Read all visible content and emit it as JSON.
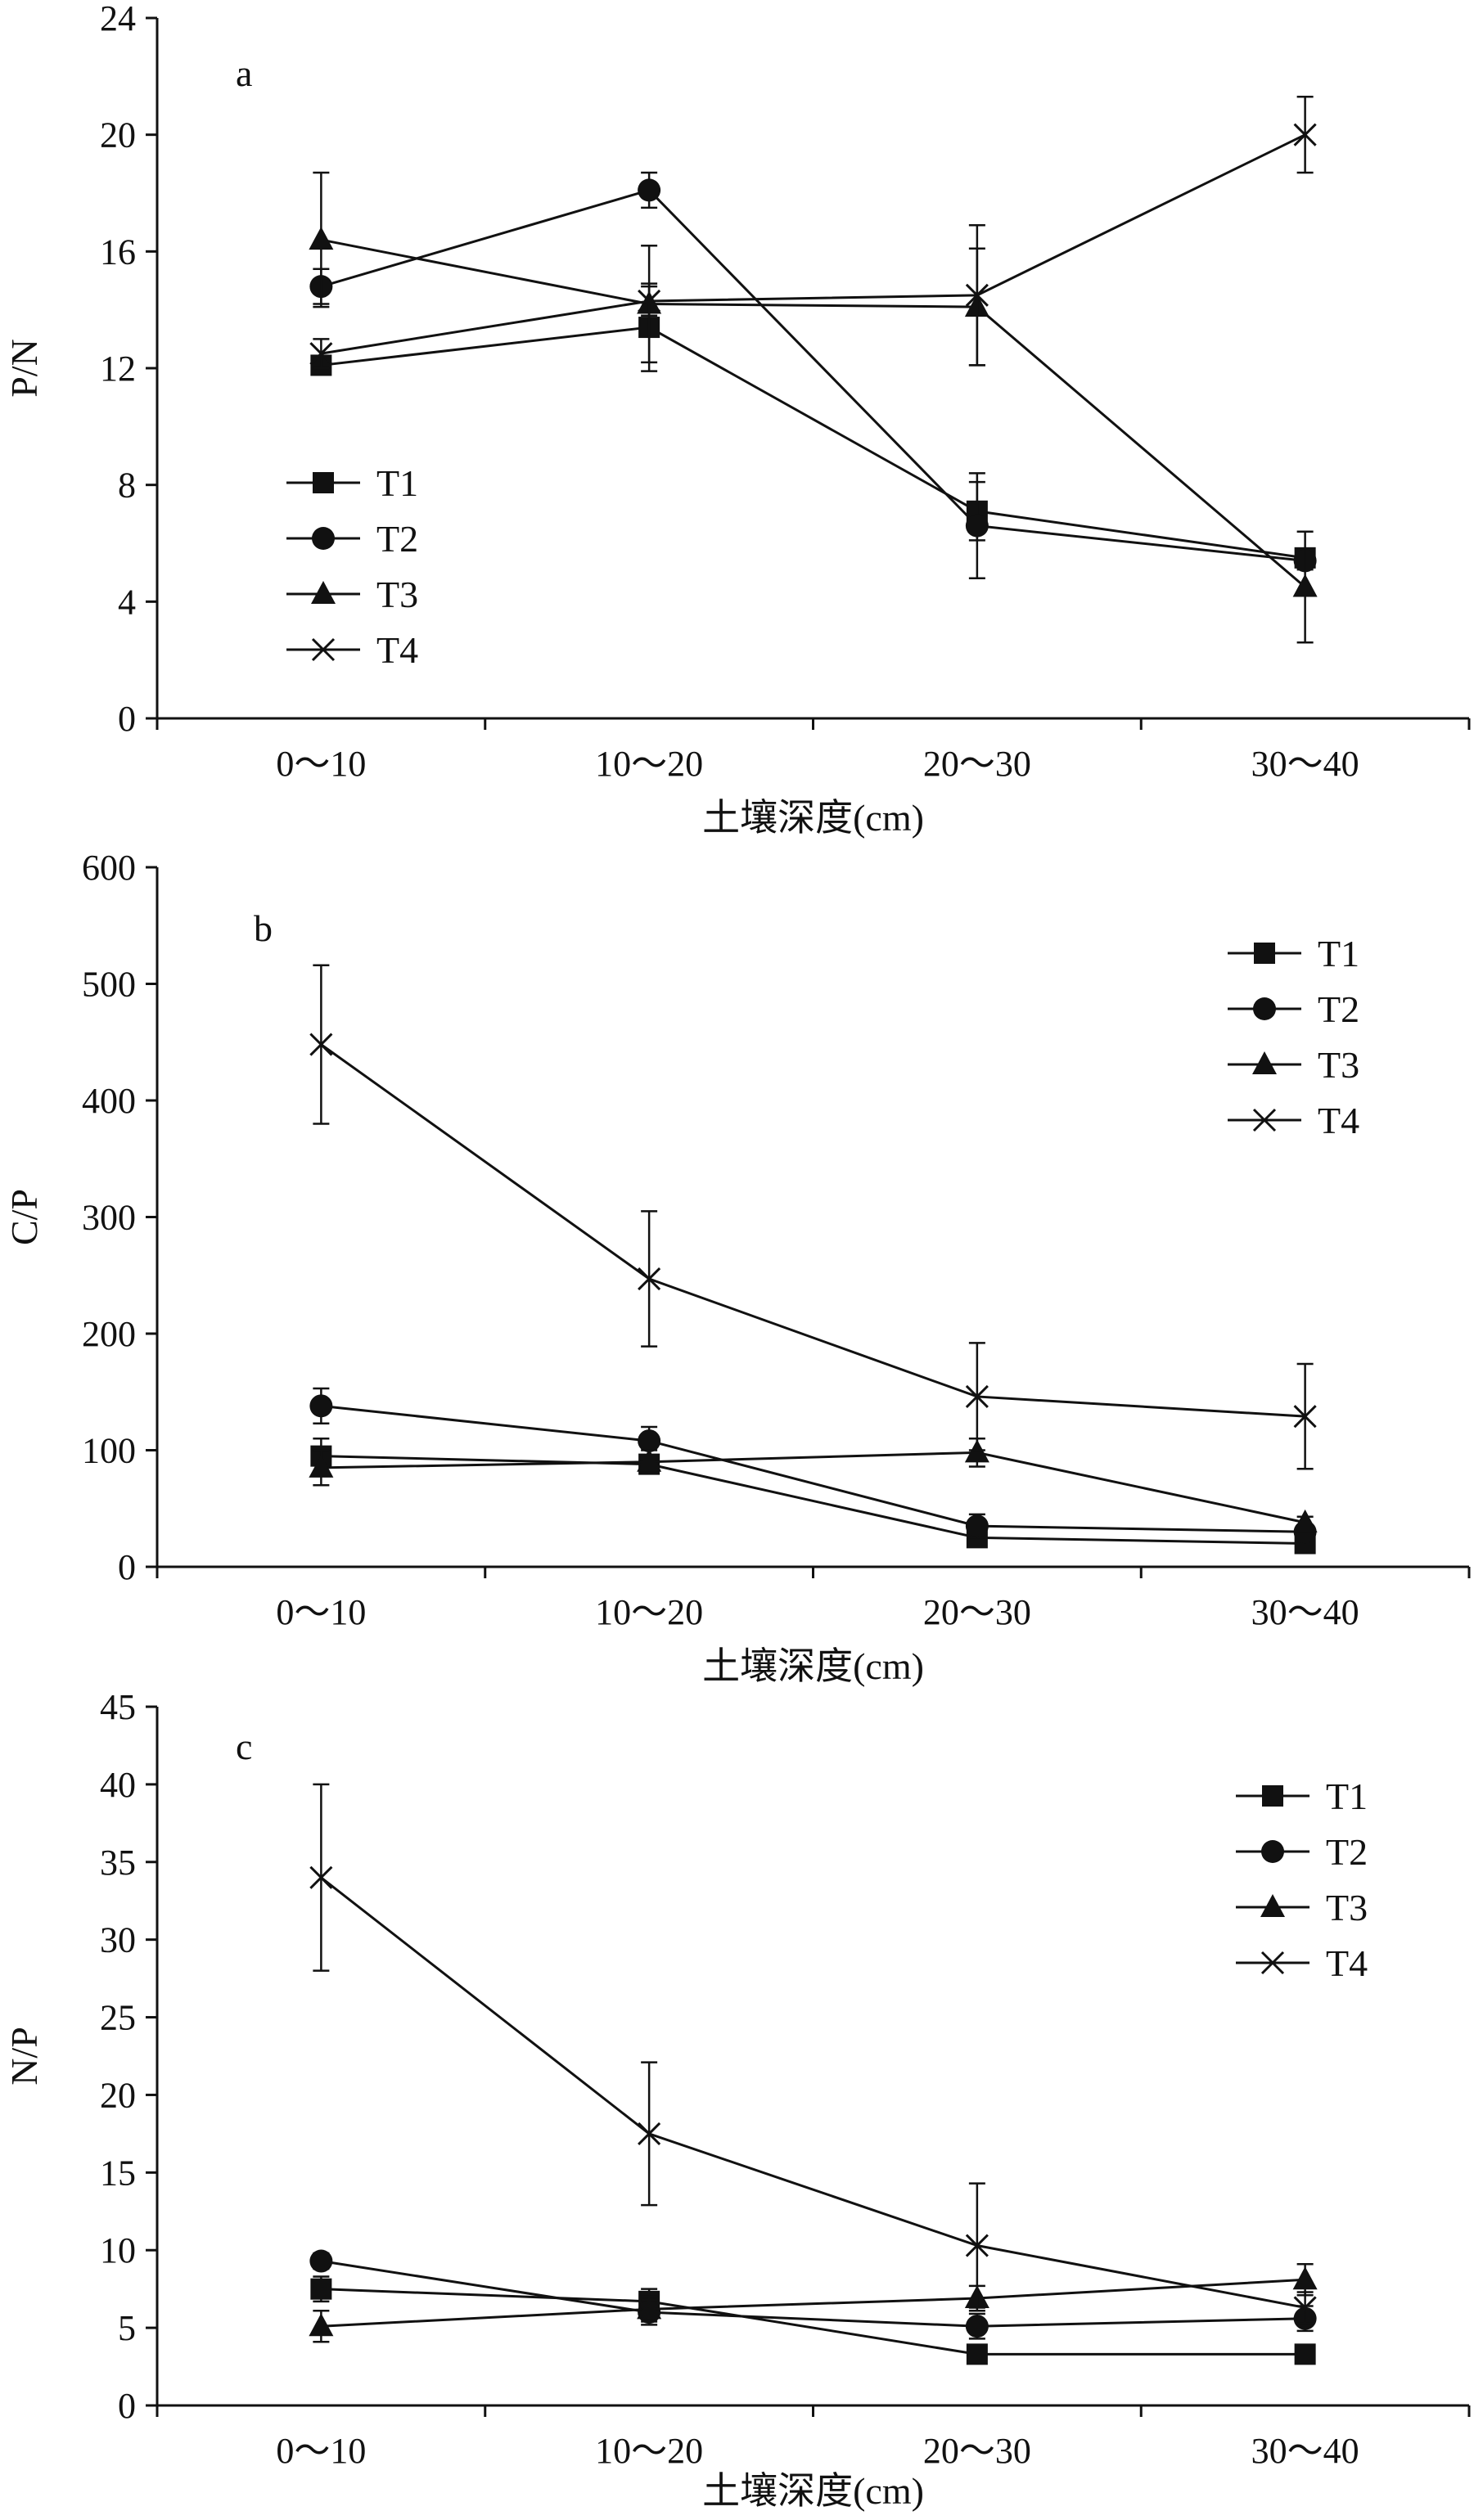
{
  "chart_data": [
    {
      "panel": "a",
      "type": "line",
      "ylabel": "P/N",
      "xlabel": "土壤深度(cm)",
      "categories": [
        "0～10",
        "10～20",
        "20～30",
        "30～40"
      ],
      "ylim": [
        0,
        24
      ],
      "yticks": [
        0,
        4,
        8,
        12,
        16,
        20,
        24
      ],
      "legend_position": "bottom-left",
      "series": [
        {
          "name": "T1",
          "marker": "square",
          "values": [
            12.1,
            13.4,
            7.1,
            5.5
          ],
          "errors": [
            0.3,
            1.5,
            1.0,
            0.3
          ]
        },
        {
          "name": "T2",
          "marker": "circle",
          "values": [
            14.8,
            18.1,
            6.6,
            5.4
          ],
          "errors": [
            0.6,
            0.6,
            1.8,
            0.3
          ]
        },
        {
          "name": "T3",
          "marker": "triangle",
          "values": [
            16.4,
            14.2,
            14.1,
            4.5
          ],
          "errors": [
            2.3,
            2.0,
            2.0,
            1.9
          ]
        },
        {
          "name": "T4",
          "marker": "x",
          "values": [
            12.5,
            14.3,
            14.5,
            20.0
          ],
          "errors": [
            0.5,
            0.5,
            2.4,
            1.3
          ]
        }
      ]
    },
    {
      "panel": "b",
      "type": "line",
      "ylabel": "C/P",
      "xlabel": "土壤深度(cm)",
      "categories": [
        "0～10",
        "10～20",
        "20～30",
        "30～40"
      ],
      "ylim": [
        0,
        600
      ],
      "yticks": [
        0,
        100,
        200,
        300,
        400,
        500,
        600
      ],
      "legend_position": "top-right",
      "series": [
        {
          "name": "T1",
          "marker": "square",
          "values": [
            95,
            88,
            25,
            20
          ],
          "errors": [
            15,
            8,
            5,
            5
          ]
        },
        {
          "name": "T2",
          "marker": "circle",
          "values": [
            138,
            108,
            35,
            30
          ],
          "errors": [
            15,
            12,
            10,
            5
          ]
        },
        {
          "name": "T3",
          "marker": "triangle",
          "values": [
            85,
            90,
            98,
            38
          ],
          "errors": [
            15,
            10,
            12,
            5
          ]
        },
        {
          "name": "T4",
          "marker": "x",
          "values": [
            448,
            247,
            146,
            129
          ],
          "errors": [
            68,
            58,
            46,
            45
          ]
        }
      ]
    },
    {
      "panel": "c",
      "type": "line",
      "ylabel": "N/P",
      "xlabel": "土壤深度(cm)",
      "categories": [
        "0～10",
        "10～20",
        "20～30",
        "30～40"
      ],
      "ylim": [
        0,
        45
      ],
      "yticks": [
        0,
        5,
        10,
        15,
        20,
        25,
        30,
        35,
        40,
        45
      ],
      "legend_position": "top-right",
      "series": [
        {
          "name": "T1",
          "marker": "square",
          "values": [
            7.5,
            6.7,
            3.3,
            3.3
          ],
          "errors": [
            0.8,
            0.8,
            0.4,
            0.4
          ]
        },
        {
          "name": "T2",
          "marker": "circle",
          "values": [
            9.3,
            6.0,
            5.1,
            5.6
          ],
          "errors": [
            0.5,
            0.8,
            0.8,
            0.8
          ]
        },
        {
          "name": "T3",
          "marker": "triangle",
          "values": [
            5.1,
            6.2,
            6.9,
            8.1
          ],
          "errors": [
            1.0,
            0.8,
            0.8,
            1.0
          ]
        },
        {
          "name": "T4",
          "marker": "x",
          "values": [
            34.0,
            17.5,
            10.3,
            6.3
          ],
          "errors": [
            6.0,
            4.6,
            4.0,
            1.0
          ]
        }
      ]
    }
  ]
}
